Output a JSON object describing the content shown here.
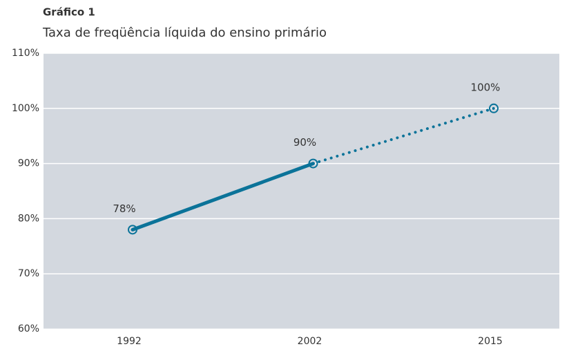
{
  "chart_data": {
    "type": "line",
    "title": "Gráfico 1",
    "subtitle": "Taxa de freqüência líquida do ensino primário",
    "categories": [
      "1992",
      "2002",
      "2015"
    ],
    "values": [
      78,
      90,
      100
    ],
    "value_labels": [
      "78%",
      "90%",
      "100%"
    ],
    "color": "#0b7399",
    "line_styles": [
      "solid",
      "dotted"
    ],
    "ylim": [
      60,
      110
    ],
    "yticks": [
      {
        "value": 60,
        "label": "60%"
      },
      {
        "value": 70,
        "label": "70%"
      },
      {
        "value": 80,
        "label": "80%"
      },
      {
        "value": 90,
        "label": "90%"
      },
      {
        "value": 100,
        "label": "100%"
      },
      {
        "value": 110,
        "label": "110%"
      }
    ],
    "grid": true
  }
}
